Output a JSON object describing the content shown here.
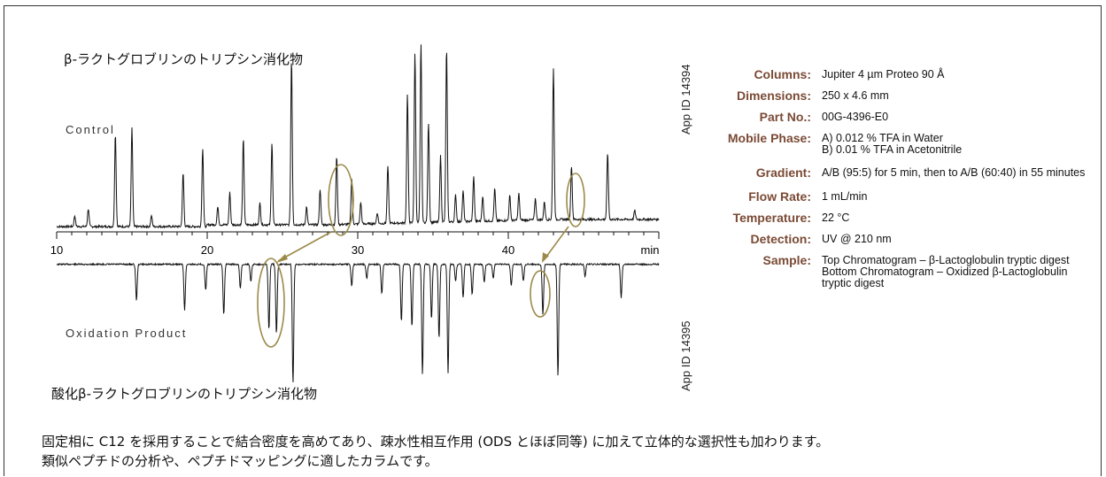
{
  "chart_data": {
    "type": "line",
    "xunit": "min",
    "xlim": [
      10,
      50
    ],
    "xticks": [
      10,
      20,
      30,
      40
    ],
    "grid": false,
    "series": [
      {
        "name": "Control",
        "peaks": [
          [
            11.2,
            0.06
          ],
          [
            12.1,
            0.1
          ],
          [
            13.9,
            0.52
          ],
          [
            15.0,
            0.55
          ],
          [
            16.3,
            0.06
          ],
          [
            18.4,
            0.3
          ],
          [
            19.7,
            0.44
          ],
          [
            20.7,
            0.1
          ],
          [
            21.5,
            0.18
          ],
          [
            22.4,
            0.48
          ],
          [
            23.5,
            0.12
          ],
          [
            24.3,
            0.46
          ],
          [
            25.6,
            0.93
          ],
          [
            26.6,
            0.1
          ],
          [
            27.5,
            0.2
          ],
          [
            28.6,
            0.38
          ],
          [
            29.6,
            0.26
          ],
          [
            30.2,
            0.12
          ],
          [
            31.3,
            0.06
          ],
          [
            32.0,
            0.32
          ],
          [
            33.3,
            0.72
          ],
          [
            33.8,
            0.95
          ],
          [
            34.2,
            1.0
          ],
          [
            34.7,
            0.56
          ],
          [
            35.5,
            0.37
          ],
          [
            35.9,
            0.97
          ],
          [
            36.5,
            0.15
          ],
          [
            37.0,
            0.17
          ],
          [
            37.7,
            0.25
          ],
          [
            38.3,
            0.14
          ],
          [
            39.1,
            0.18
          ],
          [
            40.1,
            0.14
          ],
          [
            40.7,
            0.15
          ],
          [
            41.8,
            0.12
          ],
          [
            42.4,
            0.1
          ],
          [
            43.0,
            0.85
          ],
          [
            44.2,
            0.3
          ],
          [
            46.6,
            0.37
          ],
          [
            48.4,
            0.05
          ]
        ]
      },
      {
        "name": "Oxidation Product",
        "peaks": [
          [
            15.3,
            0.3
          ],
          [
            18.5,
            0.38
          ],
          [
            19.9,
            0.22
          ],
          [
            21.1,
            0.42
          ],
          [
            22.2,
            0.2
          ],
          [
            22.9,
            0.14
          ],
          [
            24.1,
            0.55
          ],
          [
            24.6,
            0.58
          ],
          [
            25.7,
            1.0
          ],
          [
            29.6,
            0.18
          ],
          [
            30.6,
            0.12
          ],
          [
            31.6,
            0.25
          ],
          [
            32.9,
            0.48
          ],
          [
            33.6,
            0.52
          ],
          [
            34.3,
            0.92
          ],
          [
            34.9,
            0.46
          ],
          [
            35.4,
            0.62
          ],
          [
            36.0,
            0.91
          ],
          [
            36.5,
            0.14
          ],
          [
            37.0,
            0.28
          ],
          [
            37.6,
            0.25
          ],
          [
            38.4,
            0.15
          ],
          [
            39.0,
            0.12
          ],
          [
            40.2,
            0.18
          ],
          [
            41.0,
            0.14
          ],
          [
            42.3,
            0.42
          ],
          [
            43.3,
            0.93
          ],
          [
            45.1,
            0.1
          ],
          [
            47.5,
            0.28
          ]
        ]
      }
    ]
  },
  "labels": {
    "top_jp": "β-ラクトグロブリンのトリプシン消化物",
    "bottom_jp": "酸化β-ラクトグロブリンのトリプシン消化物",
    "control": "Control",
    "oxidation": "Oxidation Product",
    "appid_top": "App ID  14394",
    "appid_bottom": "App ID  14395",
    "tick_10": "10",
    "tick_20": "20",
    "tick_30": "30",
    "tick_40": "40",
    "x_unit": "min"
  },
  "conditions": [
    {
      "key": "Columns:",
      "value": "Jupiter 4 µm Proteo 90 Å"
    },
    {
      "key": "Dimensions:",
      "value": "250 x 4.6 mm"
    },
    {
      "key": "Part No.:",
      "value": "00G-4396-E0"
    },
    {
      "key": "Mobile Phase:",
      "value": "A) 0.012 % TFA in Water\nB) 0.01 % TFA in Acetonitrile"
    },
    {
      "key": "Gradient:",
      "value": "A/B (95:5) for 5 min, then to A/B (60:40) in 55 minutes"
    },
    {
      "key": "Flow Rate:",
      "value": "1 mL/min"
    },
    {
      "key": "Temperature:",
      "value": "22 °C"
    },
    {
      "key": "Detection:",
      "value": "UV @ 210 nm"
    },
    {
      "key": "Sample:",
      "value": "Top Chromatogram – β-Lactoglobulin tryptic digest\nBottom Chromatogram – Oxidized β-Lactoglobulin tryptic digest"
    }
  ],
  "footer": {
    "line1": "固定相に C12 を採用することで結合密度を高めてあり、疎水性相互作用 (ODS とほぼ同等) に加えて立体的な選択性も加わります。",
    "line2": "類似ペプチドの分析や、ペプチドマッピングに適したカラムです。"
  },
  "colors": {
    "trace": "#111111",
    "highlight": "#9c8a4a",
    "key_text": "#7a4a35"
  }
}
